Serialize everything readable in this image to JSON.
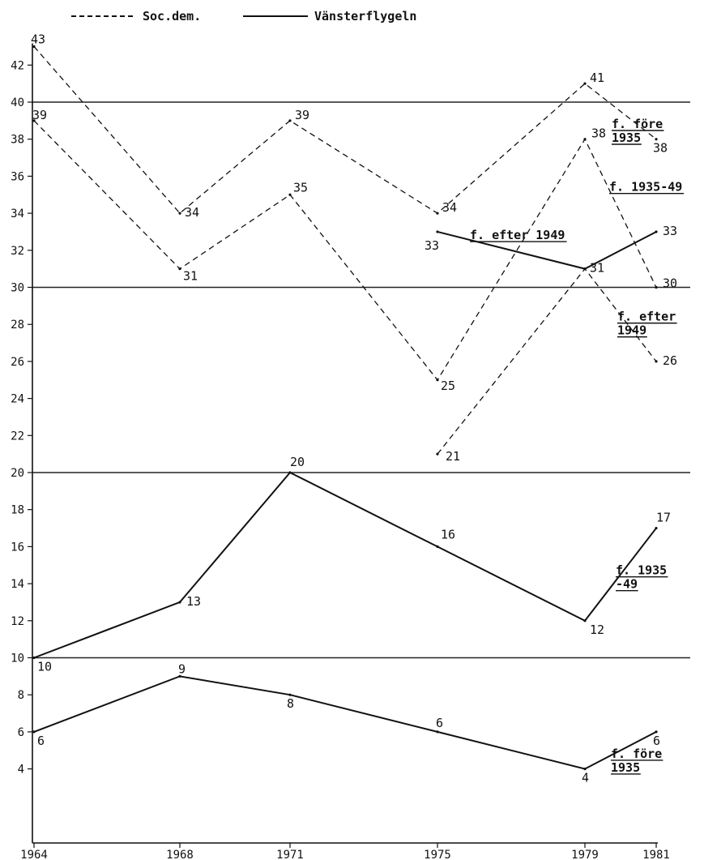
{
  "chart_data": {
    "type": "line",
    "title": "",
    "xlabel": "",
    "ylabel": "",
    "ylim": [
      0,
      43
    ],
    "xlim": [
      1964,
      1981
    ],
    "x_ticks": [
      "1964",
      "1968",
      "1971",
      "1975",
      "1979",
      "1981"
    ],
    "y_ticks": [
      "4",
      "6",
      "8",
      "10",
      "12",
      "14",
      "16",
      "18",
      "20",
      "22",
      "24",
      "26",
      "28",
      "30",
      "32",
      "34",
      "36",
      "38",
      "40",
      "42"
    ],
    "reference_lines": [
      10,
      20,
      30,
      40
    ],
    "legend": [
      {
        "label": "Soc.dem.",
        "style": "dashed"
      },
      {
        "label": "Vänsterflygeln",
        "style": "solid"
      }
    ],
    "series": [
      {
        "group": "Soc.dem.",
        "style": "dashed",
        "annotation": [
          "f. före",
          "1935"
        ],
        "x": [
          1964,
          1968,
          1971,
          1975,
          1979,
          1981
        ],
        "values": [
          43,
          34,
          39,
          34,
          41,
          38
        ],
        "value_labels": [
          "43",
          "34",
          "39",
          "34",
          "41",
          "38"
        ]
      },
      {
        "group": "Soc.dem.",
        "style": "dashed",
        "annotation": [
          "f. 1935-49"
        ],
        "x": [
          1964,
          1968,
          1971,
          1975,
          1979,
          1981
        ],
        "values": [
          39,
          31,
          35,
          25,
          38,
          30
        ],
        "value_labels": [
          "39",
          "31",
          "35",
          "25",
          "38",
          "30"
        ]
      },
      {
        "group": "Soc.dem.",
        "style": "dashed",
        "annotation": [
          "f. efter",
          "1949"
        ],
        "x": [
          1975,
          1979,
          1981
        ],
        "values": [
          21,
          31,
          26
        ],
        "value_labels": [
          "21",
          "",
          "26"
        ]
      },
      {
        "group": "Vänsterflygeln",
        "style": "solid",
        "annotation": [
          "f. efter 1949"
        ],
        "x": [
          1975,
          1979,
          1981
        ],
        "values": [
          33,
          31,
          33
        ],
        "value_labels": [
          "33",
          "31",
          "33"
        ]
      },
      {
        "group": "Vänsterflygeln",
        "style": "solid",
        "annotation": [
          "f. 1935",
          "-49"
        ],
        "x": [
          1964,
          1968,
          1971,
          1975,
          1979,
          1981
        ],
        "values": [
          10,
          13,
          20,
          16,
          12,
          17
        ],
        "value_labels": [
          "10",
          "13",
          "20",
          "16",
          "12",
          "17"
        ]
      },
      {
        "group": "Vänsterflygeln",
        "style": "solid",
        "annotation": [
          "f. före",
          "1935"
        ],
        "x": [
          1964,
          1968,
          1971,
          1975,
          1979,
          1981
        ],
        "values": [
          6,
          9,
          8,
          6,
          4,
          6
        ],
        "value_labels": [
          "6",
          "9",
          "8",
          "6",
          "4",
          "6"
        ]
      }
    ]
  }
}
